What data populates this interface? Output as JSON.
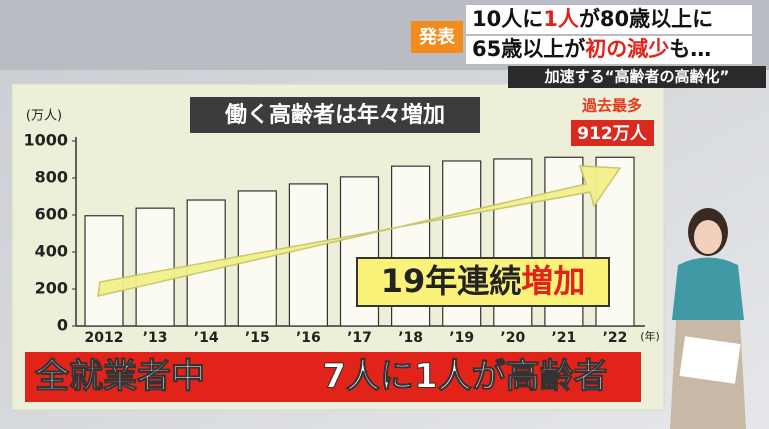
{
  "header": {
    "badge": "発表",
    "headline1": [
      "10人に",
      "1人",
      "が80歳以上に"
    ],
    "headline2": [
      "65歳以上が",
      "初の減少",
      "も…"
    ],
    "subhead": "加速する“高齢者の高齢化”"
  },
  "chart_data": {
    "type": "bar",
    "title": "働く高齢者は年々増加",
    "y_unit": "(万人)",
    "x_unit": "(年)",
    "categories": [
      "2012",
      "’13",
      "’14",
      "’15",
      "’16",
      "’17",
      "’18",
      "’19",
      "’20",
      "’21",
      "’22"
    ],
    "values": [
      596,
      637,
      681,
      730,
      768,
      806,
      864,
      892,
      903,
      912,
      912
    ],
    "record_note": "過去最多",
    "record_label": "912万人",
    "ylim": [
      0,
      1000
    ],
    "yticks": [
      0,
      200,
      400,
      600,
      800,
      1000
    ],
    "grid": false,
    "color": "#fbfbf3",
    "annotation": [
      "19年連続",
      "増加"
    ]
  },
  "footer": {
    "left": "全就業者中",
    "right": "7人に1人が高齢者"
  }
}
